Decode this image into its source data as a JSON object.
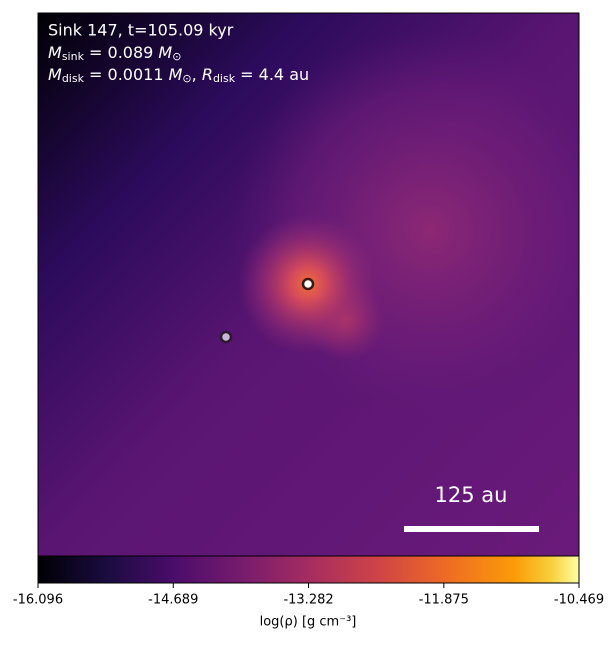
{
  "chart_data": {
    "type": "image",
    "title_line": "Sink 147, t=105.09 kyr",
    "sink_mass_line": [
      "M",
      "sink",
      " = 0.089 ",
      "M",
      "⊙"
    ],
    "disk_line": [
      "M",
      "disk",
      " = 0.0011 ",
      "M",
      "⊙",
      ", ",
      "R",
      "disk",
      " = 4.4 au"
    ],
    "scale_bar_label": "125 au",
    "colorbar": {
      "label": "log(ρ) [g cm⁻³]",
      "clim": [
        -16.096,
        -10.469
      ],
      "ticks": [
        -16.096,
        -14.689,
        -13.282,
        -11.875,
        -10.469
      ]
    }
  }
}
